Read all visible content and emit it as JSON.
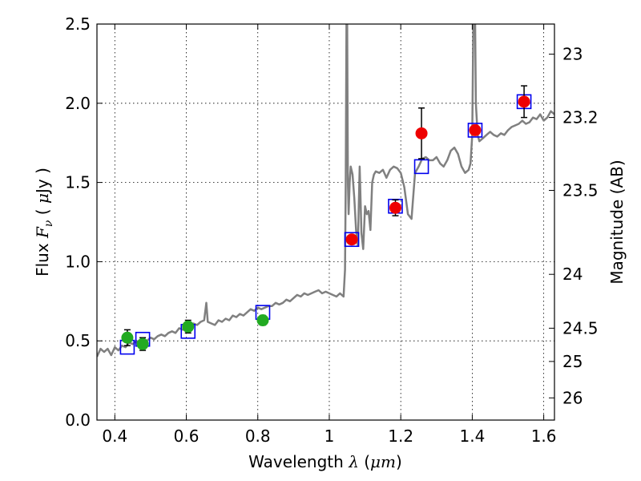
{
  "chart_data": {
    "type": "scatter",
    "title": "",
    "xlabel": "Wavelength",
    "xlabel_symbol": "λ",
    "xlabel_unit_open": "(",
    "xlabel_unit": "μm",
    "xlabel_unit_close": ")",
    "ylabel": "Flux",
    "ylabel_symbol": "F",
    "ylabel_subscript": "ν",
    "ylabel_unit_open": "(",
    "ylabel_unit_mu": "μ",
    "ylabel_unit": "Jy",
    "ylabel_unit_close": ")",
    "y2label": "Magnitude (AB)",
    "xlim": [
      0.35,
      1.63
    ],
    "ylim": [
      0.0,
      2.5
    ],
    "grid": true,
    "x_ticks": [
      {
        "value": 0.4,
        "label": "0.4"
      },
      {
        "value": 0.6,
        "label": "0.6"
      },
      {
        "value": 0.8,
        "label": "0.8"
      },
      {
        "value": 1.0,
        "label": "1"
      },
      {
        "value": 1.2,
        "label": "1.2"
      },
      {
        "value": 1.4,
        "label": "1.4"
      },
      {
        "value": 1.6,
        "label": "1.6"
      }
    ],
    "y_ticks": [
      {
        "value": 0.0,
        "label": "0.0"
      },
      {
        "value": 0.5,
        "label": "0.5"
      },
      {
        "value": 1.0,
        "label": "1.0"
      },
      {
        "value": 1.5,
        "label": "1.5"
      },
      {
        "value": 2.0,
        "label": "2.0"
      },
      {
        "value": 2.5,
        "label": "2.5"
      }
    ],
    "y2_ticks": [
      {
        "flux": 2.31,
        "label": "23"
      },
      {
        "flux": 1.91,
        "label": "23.2"
      },
      {
        "flux": 1.45,
        "label": "23.5"
      },
      {
        "flux": 0.92,
        "label": "24"
      },
      {
        "flux": 0.58,
        "label": "24.5"
      },
      {
        "flux": 0.37,
        "label": "25"
      },
      {
        "flux": 0.14,
        "label": "26"
      }
    ],
    "series": [
      {
        "name": "model_spectrum",
        "kind": "line",
        "color": "#808080",
        "x": [
          0.35,
          0.36,
          0.37,
          0.38,
          0.39,
          0.4,
          0.41,
          0.42,
          0.43,
          0.44,
          0.45,
          0.46,
          0.47,
          0.48,
          0.49,
          0.5,
          0.51,
          0.52,
          0.53,
          0.54,
          0.55,
          0.56,
          0.57,
          0.58,
          0.59,
          0.6,
          0.61,
          0.62,
          0.63,
          0.64,
          0.65,
          0.656,
          0.66,
          0.67,
          0.68,
          0.69,
          0.7,
          0.71,
          0.72,
          0.73,
          0.74,
          0.75,
          0.76,
          0.77,
          0.78,
          0.79,
          0.8,
          0.81,
          0.82,
          0.83,
          0.84,
          0.85,
          0.86,
          0.87,
          0.88,
          0.89,
          0.9,
          0.91,
          0.92,
          0.93,
          0.94,
          0.95,
          0.96,
          0.97,
          0.98,
          0.99,
          1.0,
          1.01,
          1.02,
          1.03,
          1.04,
          1.044,
          1.046,
          1.048,
          1.05,
          1.052,
          1.054,
          1.057,
          1.06,
          1.065,
          1.07,
          1.075,
          1.08,
          1.085,
          1.09,
          1.095,
          1.1,
          1.105,
          1.11,
          1.115,
          1.12,
          1.125,
          1.13,
          1.14,
          1.15,
          1.16,
          1.17,
          1.18,
          1.19,
          1.2,
          1.21,
          1.22,
          1.23,
          1.24,
          1.25,
          1.26,
          1.27,
          1.28,
          1.29,
          1.3,
          1.31,
          1.32,
          1.33,
          1.34,
          1.35,
          1.36,
          1.37,
          1.38,
          1.39,
          1.395,
          1.4,
          1.403,
          1.405,
          1.408,
          1.41,
          1.415,
          1.42,
          1.43,
          1.44,
          1.45,
          1.46,
          1.47,
          1.48,
          1.49,
          1.5,
          1.51,
          1.52,
          1.53,
          1.54,
          1.55,
          1.56,
          1.57,
          1.58,
          1.59,
          1.6,
          1.61,
          1.62,
          1.63
        ],
        "y": [
          0.4,
          0.45,
          0.43,
          0.45,
          0.41,
          0.46,
          0.44,
          0.47,
          0.46,
          0.49,
          0.48,
          0.5,
          0.47,
          0.51,
          0.5,
          0.52,
          0.51,
          0.53,
          0.54,
          0.53,
          0.55,
          0.56,
          0.55,
          0.58,
          0.57,
          0.58,
          0.6,
          0.61,
          0.6,
          0.62,
          0.63,
          0.74,
          0.62,
          0.61,
          0.6,
          0.63,
          0.62,
          0.64,
          0.63,
          0.66,
          0.65,
          0.67,
          0.66,
          0.68,
          0.7,
          0.69,
          0.71,
          0.7,
          0.71,
          0.72,
          0.72,
          0.74,
          0.73,
          0.74,
          0.76,
          0.75,
          0.77,
          0.79,
          0.78,
          0.8,
          0.79,
          0.8,
          0.81,
          0.82,
          0.8,
          0.81,
          0.8,
          0.79,
          0.78,
          0.8,
          0.78,
          0.95,
          1.5,
          2.5,
          2.5,
          1.5,
          1.3,
          1.5,
          1.6,
          1.55,
          1.4,
          1.2,
          1.1,
          1.6,
          1.18,
          1.08,
          1.35,
          1.3,
          1.32,
          1.2,
          1.5,
          1.55,
          1.57,
          1.56,
          1.58,
          1.53,
          1.58,
          1.6,
          1.59,
          1.56,
          1.47,
          1.3,
          1.27,
          1.56,
          1.6,
          1.65,
          1.66,
          1.64,
          1.64,
          1.66,
          1.62,
          1.6,
          1.64,
          1.7,
          1.72,
          1.68,
          1.6,
          1.56,
          1.58,
          1.62,
          1.8,
          2.5,
          2.5,
          2.5,
          2.0,
          1.8,
          1.76,
          1.78,
          1.8,
          1.82,
          1.8,
          1.79,
          1.81,
          1.8,
          1.83,
          1.85,
          1.86,
          1.87,
          1.89,
          1.87,
          1.88,
          1.91,
          1.9,
          1.93,
          1.89,
          1.91,
          1.95,
          1.93
        ]
      },
      {
        "name": "model_photometry",
        "kind": "squares",
        "edge_color": "#0000ee",
        "x": [
          0.435,
          0.478,
          0.605,
          0.814,
          1.063,
          1.185,
          1.258,
          1.408,
          1.545
        ],
        "y": [
          0.46,
          0.51,
          0.56,
          0.68,
          1.14,
          1.35,
          1.6,
          1.83,
          2.01
        ]
      },
      {
        "name": "observed_optical",
        "kind": "points",
        "color": "#22aa22",
        "x": [
          0.435,
          0.478,
          0.605,
          0.814
        ],
        "y": [
          0.52,
          0.48,
          0.59,
          0.63
        ],
        "yerr": [
          0.05,
          0.04,
          0.04,
          0.03
        ]
      },
      {
        "name": "observed_infrared",
        "kind": "points",
        "color": "#ee0000",
        "x": [
          1.063,
          1.185,
          1.258,
          1.408,
          1.545
        ],
        "y": [
          1.14,
          1.34,
          1.81,
          1.83,
          2.01
        ],
        "yerr": [
          0.0,
          0.05,
          0.16,
          0.0,
          0.1
        ]
      }
    ]
  }
}
